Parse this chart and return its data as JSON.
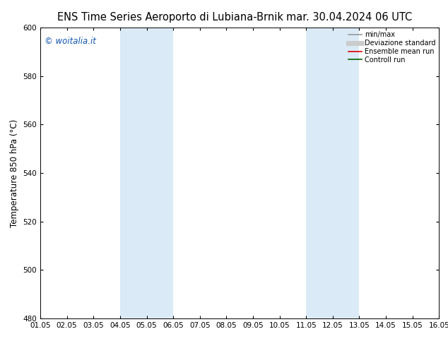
{
  "title_left": "ENS Time Series Aeroporto di Lubiana-Brnik",
  "title_right": "mar. 30.04.2024 06 UTC",
  "ylabel": "Temperature 850 hPa (°C)",
  "ylim": [
    480,
    600
  ],
  "yticks": [
    480,
    500,
    520,
    540,
    560,
    580,
    600
  ],
  "xlim_start": 0,
  "xlim_end": 15,
  "xtick_labels": [
    "01.05",
    "02.05",
    "03.05",
    "04.05",
    "05.05",
    "06.05",
    "07.05",
    "08.05",
    "09.05",
    "10.05",
    "11.05",
    "12.05",
    "13.05",
    "14.05",
    "15.05",
    "16.05"
  ],
  "shaded_bands": [
    {
      "x_start": 3,
      "x_end": 5
    },
    {
      "x_start": 10,
      "x_end": 12
    }
  ],
  "band_color": "#daeaf7",
  "background_color": "#ffffff",
  "plot_bg_color": "#ffffff",
  "watermark": "© woitalia.it",
  "watermark_color": "#1155aa",
  "legend_items": [
    {
      "label": "min/max",
      "color": "#999999",
      "lw": 1.2,
      "ls": "-"
    },
    {
      "label": "Deviazione standard",
      "color": "#cccccc",
      "lw": 5,
      "ls": "-"
    },
    {
      "label": "Ensemble mean run",
      "color": "#dd0000",
      "lw": 1.2,
      "ls": "-"
    },
    {
      "label": "Controll run",
      "color": "#006600",
      "lw": 1.2,
      "ls": "-"
    }
  ],
  "title_fontsize": 10.5,
  "tick_fontsize": 7.5,
  "ylabel_fontsize": 8.5,
  "legend_fontsize": 7.0
}
